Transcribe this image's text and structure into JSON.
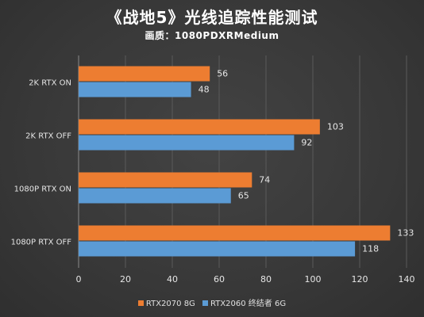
{
  "title": "《战地5》光线追踪性能测试",
  "subtitle": "画质：1080PDXRMedium",
  "colors": {
    "series0": "#ed7d31",
    "series1": "#5b9bd5",
    "grid": "#5a5a5a",
    "text": "#e6e6e6"
  },
  "chart_data": {
    "type": "bar",
    "orientation": "horizontal",
    "categories": [
      "2K RTX ON",
      "2K RTX OFF",
      "1080P RTX ON",
      "1080P RTX OFF"
    ],
    "series": [
      {
        "name": "RTX2070 8G",
        "values": [
          56,
          103,
          74,
          133
        ]
      },
      {
        "name": "RTX2060 终结者 6G",
        "values": [
          48,
          92,
          65,
          118
        ]
      }
    ],
    "x_ticks": [
      "0",
      "20",
      "40",
      "60",
      "80",
      "100",
      "120",
      "140"
    ],
    "xlim": [
      0,
      140
    ],
    "grid": true,
    "legend_position": "bottom"
  }
}
